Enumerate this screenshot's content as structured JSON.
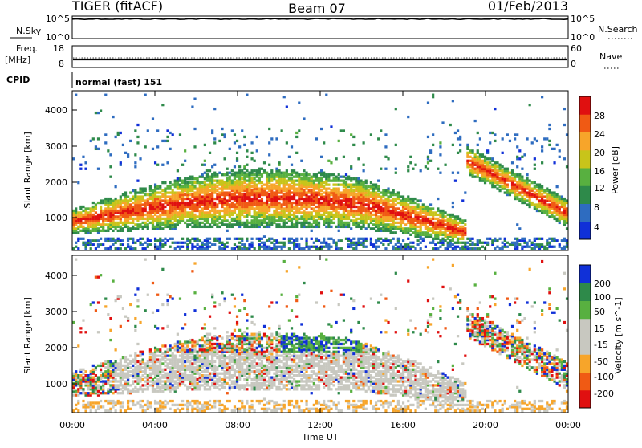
{
  "header": {
    "title": "TIGER (fitACF)",
    "beam": "Beam 07",
    "date": "01/Feb/2013"
  },
  "nsky_panel": {
    "left_label": "N.Sky",
    "left_ticks": [
      "10^5",
      "10^0"
    ],
    "right_label": "N.Search",
    "right_ticks": [
      "10^5",
      "10^0"
    ]
  },
  "freq_panel": {
    "left_label_1": "Freq.",
    "left_label_2": "[MHz]",
    "left_ticks": [
      "18",
      "8"
    ],
    "right_label": "Nave",
    "right_ticks": [
      "60",
      "0"
    ]
  },
  "cpid_panel": {
    "label": "CPID",
    "value": "normal (fast) 151"
  },
  "x_axis": {
    "label": "Time UT",
    "ticks": [
      "00:00",
      "04:00",
      "08:00",
      "12:00",
      "16:00",
      "20:00",
      "00:00"
    ]
  },
  "colors": {
    "power": [
      "#1030d8",
      "#2e6cc0",
      "#2e8a4a",
      "#58b040",
      "#c8c41a",
      "#f7a52a",
      "#f05a14",
      "#e01010"
    ],
    "velocity": [
      "#e01010",
      "#f05a14",
      "#f7a52a",
      "#c8c8c0",
      "#c8c8c0",
      "#58b040",
      "#2e8a4a",
      "#1030d8"
    ]
  },
  "chart_data": [
    {
      "type": "heatmap",
      "title": "Power",
      "xlabel": "Time UT",
      "ylabel": "Slant Range [km]",
      "yticks": [
        "1000",
        "2000",
        "3000",
        "4000"
      ],
      "ylim": [
        200,
        4600
      ],
      "xlim_hours": [
        0,
        24
      ],
      "colorbar": {
        "label": "Power [dB]",
        "ticks": [
          "4",
          "8",
          "12",
          "16",
          "20",
          "24",
          "28"
        ],
        "range": [
          0,
          30
        ]
      },
      "features": [
        {
          "name": "main echo band",
          "time_range_h": [
            0,
            19
          ],
          "slant_range_km": [
            700,
            2200
          ],
          "power_db": [
            12,
            28
          ]
        },
        {
          "name": "late evening band",
          "time_range_h": [
            19,
            24
          ],
          "slant_range_km": [
            900,
            2900
          ],
          "power_db": [
            8,
            24
          ]
        },
        {
          "name": "near-range ground clutter",
          "time_range_h": [
            0,
            24
          ],
          "slant_range_km": [
            200,
            600
          ],
          "power_db": [
            2,
            10
          ]
        }
      ]
    },
    {
      "type": "heatmap",
      "title": "Velocity",
      "xlabel": "Time UT",
      "ylabel": "Slant Range [km]",
      "yticks": [
        "1000",
        "2000",
        "3000",
        "4000"
      ],
      "ylim": [
        200,
        4600
      ],
      "xlim_hours": [
        0,
        24
      ],
      "colorbar": {
        "label": "Velocity [m s^-1]",
        "ticks": [
          "200",
          "100",
          "50",
          "15",
          "-15",
          "-50",
          "-100",
          "-200"
        ],
        "range": [
          -250,
          250
        ]
      },
      "features": [
        {
          "name": "low-velocity (ground scatter) band",
          "time_range_h": [
            3,
            19
          ],
          "slant_range_km": [
            700,
            1900
          ],
          "velocity_ms": [
            -15,
            15
          ]
        },
        {
          "name": "positive velocity patch",
          "time_range_h": [
            10,
            14
          ],
          "slant_range_km": [
            1500,
            2800
          ],
          "velocity_ms": [
            50,
            250
          ]
        },
        {
          "name": "negative velocity patch",
          "time_range_h": [
            14,
            18
          ],
          "slant_range_km": [
            800,
            1600
          ],
          "velocity_ms": [
            -200,
            -15
          ]
        }
      ]
    }
  ]
}
